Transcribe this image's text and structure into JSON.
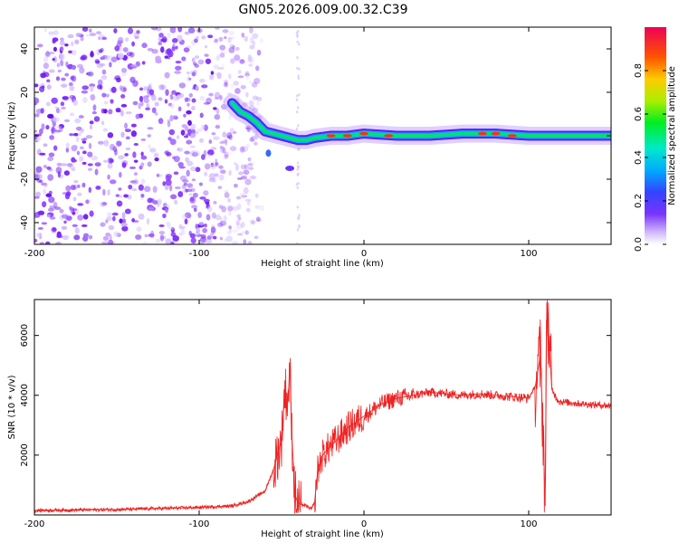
{
  "title": "GN05.2026.009.00.32.C39",
  "chart_data": [
    {
      "type": "heatmap",
      "name": "spectrogram",
      "xlabel": "Height of straight line (km)",
      "ylabel": "Frequency (Hz)",
      "xlim": [
        -200,
        150
      ],
      "ylim": [
        -50,
        50
      ],
      "xticks": [
        -200,
        -100,
        0,
        100
      ],
      "xtick_labels": [
        "-200",
        "-100",
        "0",
        "100"
      ],
      "yticks": [
        -40,
        -20,
        0,
        20,
        40
      ],
      "ytick_labels": [
        "-40",
        "-20",
        "0",
        "20",
        "40"
      ],
      "colorbar": {
        "label": "Normalized spectral amplitude",
        "range": [
          0,
          1
        ],
        "ticks": [
          0.0,
          0.2,
          0.4,
          0.6,
          0.8
        ],
        "tick_labels": [
          "0.0",
          "0.2",
          "0.4",
          "0.6",
          "0.8"
        ]
      },
      "signal_ridge": {
        "x_km": [
          -80,
          -75,
          -70,
          -65,
          -60,
          -55,
          -50,
          -45,
          -40,
          -35,
          -30,
          -20,
          -10,
          0,
          20,
          40,
          60,
          80,
          100,
          110,
          130,
          150
        ],
        "freq_hz": [
          15,
          11,
          9,
          6,
          2,
          1,
          0,
          -1,
          -2,
          -2,
          -1,
          0,
          0,
          1,
          0,
          0,
          1,
          1,
          0,
          0,
          0,
          0
        ]
      },
      "noise_region_km": [
        -200,
        -70
      ]
    },
    {
      "type": "line",
      "name": "snr",
      "xlabel": "Height of straight line (km)",
      "ylabel": "SNR (10 * v/v)",
      "xlim": [
        -200,
        150
      ],
      "ylim": [
        0,
        7200
      ],
      "xticks": [
        -200,
        -100,
        0,
        100
      ],
      "xtick_labels": [
        "-200",
        "-100",
        "0",
        "100"
      ],
      "yticks": [
        2000,
        4000,
        6000
      ],
      "ytick_labels": [
        "2000",
        "4000",
        "6000"
      ],
      "series": [
        {
          "name": "SNR",
          "color": "#ee2222",
          "x": [
            -200,
            -150,
            -100,
            -80,
            -70,
            -60,
            -55,
            -50,
            -48,
            -46,
            -45,
            -44,
            -42,
            -40,
            -38,
            -35,
            -32,
            -30,
            -28,
            -25,
            -22,
            -20,
            -15,
            -10,
            -5,
            0,
            5,
            10,
            20,
            30,
            40,
            50,
            60,
            70,
            80,
            90,
            100,
            104,
            107,
            109,
            110,
            111,
            112,
            114,
            118,
            125,
            135,
            150
          ],
          "y": [
            150,
            180,
            250,
            300,
            450,
            800,
            1500,
            2500,
            4200,
            3800,
            5100,
            3000,
            700,
            400,
            350,
            300,
            200,
            400,
            1500,
            2000,
            2200,
            2300,
            2600,
            2900,
            3100,
            3300,
            3500,
            3700,
            3900,
            4000,
            4100,
            4050,
            4000,
            4050,
            4000,
            3950,
            3900,
            4300,
            5300,
            2500,
            300,
            7100,
            6200,
            4200,
            3800,
            3750,
            3700,
            3650
          ]
        }
      ]
    }
  ]
}
